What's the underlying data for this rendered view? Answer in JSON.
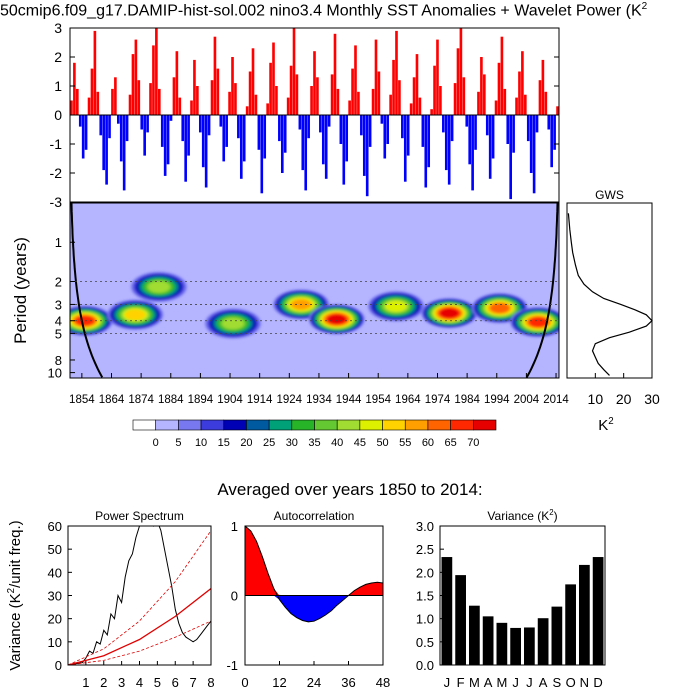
{
  "title": "50cmip6.f09_g17.DAMIP-hist-sol.002 nino3.4 Monthly SST Anomalies + Wavelet Power (K",
  "title_sup": "2",
  "subtitle": "Averaged over years 1850 to 2014:",
  "colors": {
    "positive": "#ff0000",
    "negative": "#0000ff",
    "background": "#ffffff"
  },
  "chart_data": [
    {
      "id": "anomaly-timeseries",
      "type": "bar",
      "x_start_year": 1850,
      "x_end_year": 2015,
      "ylim": [
        -3,
        3
      ],
      "yticks": [
        "-3",
        "-2",
        "-1",
        "0",
        "1",
        "2",
        "3"
      ],
      "note_values": "monthly SST anomaly bars, positive red / negative blue",
      "series": [
        {
          "name": "",
          "values": [
            0.5,
            1.8,
            0.9,
            -0.4,
            -1.5,
            -1.2,
            0.6,
            1.6,
            2.9,
            0.8,
            -0.7,
            -1.9,
            -2.4,
            -0.8,
            0.9,
            1.3,
            -0.3,
            -1.6,
            -2.6,
            -0.9,
            0.7,
            2.1,
            2.6,
            1.2,
            -0.5,
            -1.4,
            -0.6,
            1.1,
            2.4,
            3.0,
            0.9,
            -1.1,
            -2.1,
            -1.7,
            -0.2,
            1.3,
            2.2,
            0.6,
            -0.9,
            -2.3,
            -1.4,
            0.5,
            1.9,
            1.0,
            -0.6,
            -1.8,
            -2.5,
            -0.7,
            1.2,
            2.7,
            1.6,
            -0.4,
            -1.6,
            -1.1,
            0.8,
            2.0,
            1.1,
            -0.8,
            -2.2,
            -1.6,
            0.3,
            1.5,
            2.3,
            0.7,
            -1.2,
            -2.7,
            -1.5,
            0.4,
            1.8,
            2.5,
            1.0,
            -0.9,
            -2.0,
            -1.3,
            0.6,
            1.7,
            3.0,
            1.4,
            -0.5,
            -1.9,
            -2.6,
            -0.8,
            1.0,
            2.2,
            1.3,
            -0.6,
            -1.7,
            -2.2,
            -0.4,
            1.4,
            2.8,
            0.9,
            -1.0,
            -2.4,
            -1.6,
            0.5,
            1.6,
            2.4,
            0.8,
            -0.7,
            -2.1,
            -2.8,
            -1.1,
            0.9,
            2.6,
            1.5,
            -0.3,
            -1.5,
            -1.0,
            0.7,
            1.9,
            2.9,
            1.2,
            -0.8,
            -2.3,
            -1.4,
            0.4,
            1.3,
            2.1,
            0.6,
            -1.1,
            -2.5,
            -1.8,
            0.2,
            1.7,
            2.6,
            1.0,
            -0.6,
            -1.9,
            -2.4,
            -0.9,
            1.1,
            2.3,
            3.0,
            1.3,
            -0.4,
            -1.7,
            -2.6,
            -1.2,
            0.8,
            2.0,
            1.4,
            -0.7,
            -2.2,
            -1.5,
            0.5,
            1.8,
            2.7,
            0.9,
            -1.0,
            -2.9,
            -1.3,
            0.6,
            1.5,
            2.2,
            0.7,
            -0.9,
            -2.0,
            -2.7,
            -0.6,
            1.2,
            1.9,
            0.8,
            -0.5,
            -1.8,
            -1.2,
            0.3
          ]
        }
      ]
    },
    {
      "id": "wavelet-power",
      "type": "heatmap",
      "xlabel": "",
      "ylabel": "Period (years)",
      "xticks": [
        "1854",
        "1864",
        "1874",
        "1884",
        "1894",
        "1904",
        "1914",
        "1924",
        "1934",
        "1944",
        "1954",
        "1964",
        "1974",
        "1984",
        "1994",
        "2004",
        "2014"
      ],
      "yticks": [
        "1",
        "2",
        "3",
        "4",
        "5",
        "8",
        "10"
      ],
      "colorbar": {
        "labels": [
          "0",
          "5",
          "10",
          "15",
          "20",
          "25",
          "30",
          "35",
          "40",
          "45",
          "50",
          "55",
          "60",
          "65",
          "70"
        ],
        "colors": [
          "#ffffff",
          "#b4b4ff",
          "#7878f0",
          "#3c3cdc",
          "#0000b4",
          "#005aa0",
          "#00a078",
          "#28b428",
          "#64c832",
          "#a0dc32",
          "#dcf000",
          "#ffd200",
          "#ffa000",
          "#ff6400",
          "#ff2800",
          "#e60000"
        ]
      },
      "blobs": [
        {
          "year": 1855,
          "period": 4.0,
          "power": 65
        },
        {
          "year": 1872,
          "period": 3.6,
          "power": 52
        },
        {
          "year": 1880,
          "period": 2.2,
          "power": 40
        },
        {
          "year": 1905,
          "period": 4.2,
          "power": 38
        },
        {
          "year": 1928,
          "period": 3.0,
          "power": 55
        },
        {
          "year": 1940,
          "period": 3.9,
          "power": 72
        },
        {
          "year": 1960,
          "period": 3.1,
          "power": 45
        },
        {
          "year": 1978,
          "period": 3.5,
          "power": 68
        },
        {
          "year": 1995,
          "period": 3.2,
          "power": 58
        },
        {
          "year": 2008,
          "period": 4.1,
          "power": 66
        }
      ]
    },
    {
      "id": "global-wavelet-spectrum",
      "type": "line",
      "title": "GWS",
      "xlabel": "K",
      "xlabel_sup": "2",
      "xticks": [
        "10",
        "20",
        "30"
      ],
      "xlim": [
        0,
        30
      ],
      "ylim_periods": [
        0.5,
        11
      ],
      "series": [
        {
          "name": "",
          "x": [
            0.5,
            1,
            1.5,
            2,
            3,
            4,
            6,
            9,
            13,
            19,
            24,
            28,
            30,
            28,
            22,
            15,
            10,
            9,
            10,
            11,
            13,
            15
          ],
          "y": [
            0.6,
            0.8,
            1.0,
            1.2,
            1.5,
            1.8,
            2.1,
            2.4,
            2.7,
            3.0,
            3.3,
            3.6,
            4.0,
            4.4,
            4.9,
            5.4,
            6.0,
            6.8,
            7.6,
            8.5,
            9.5,
            10.5
          ]
        }
      ]
    },
    {
      "id": "power-spectrum",
      "type": "line",
      "title": "Power Spectrum",
      "ylabel": "Variance (K",
      "ylabel_sup": "2",
      "ylabel_tail": "/unit freq.)",
      "xticks": [
        "1",
        "2",
        "3",
        "4",
        "5",
        "6",
        "7",
        "8"
      ],
      "yticks": [
        "0",
        "10",
        "20",
        "30",
        "40",
        "50",
        "60"
      ],
      "xlim": [
        0,
        8
      ],
      "ylim": [
        0,
        60
      ],
      "series": [
        {
          "name": "",
          "x": [
            0,
            0.4,
            0.8,
            1.0,
            1.2,
            1.4,
            1.6,
            1.8,
            2.0,
            2.2,
            2.4,
            2.6,
            2.8,
            3.0,
            3.2,
            3.4,
            3.6,
            3.8,
            4.0,
            4.2,
            4.4,
            4.6,
            4.8,
            5.0,
            5.2,
            5.4,
            5.6,
            5.8,
            6.0,
            6.2,
            6.4,
            6.6,
            6.8,
            7.0,
            7.2,
            7.4,
            7.6,
            7.8,
            8.0
          ],
          "y": [
            0,
            0.5,
            1,
            3,
            6,
            5,
            10,
            9,
            15,
            13,
            22,
            20,
            30,
            27,
            38,
            45,
            48,
            55,
            60,
            62,
            68,
            65,
            60,
            62,
            58,
            50,
            42,
            34,
            24,
            18,
            14,
            12,
            11,
            10,
            11,
            13,
            15,
            17,
            19
          ]
        },
        {
          "name": "",
          "x": [
            0,
            2,
            4,
            6,
            8
          ],
          "y": [
            0,
            4,
            11,
            21,
            33
          ]
        },
        {
          "name": "",
          "x": [
            0,
            2,
            4,
            6,
            8
          ],
          "y": [
            0,
            7,
            19,
            36,
            58
          ]
        },
        {
          "name": "",
          "x": [
            0,
            2,
            4,
            6,
            8
          ],
          "y": [
            0,
            2,
            6,
            12,
            19
          ]
        }
      ]
    },
    {
      "id": "autocorrelation",
      "type": "area",
      "title": "Autocorrelation",
      "xticks": [
        "0",
        "12",
        "24",
        "36",
        "48"
      ],
      "yticks": [
        "-1",
        "0",
        "1"
      ],
      "xlim": [
        0,
        48
      ],
      "ylim": [
        -1,
        1
      ],
      "series": [
        {
          "name": "",
          "x": [
            0,
            2,
            4,
            6,
            8,
            10,
            12,
            14,
            16,
            18,
            20,
            22,
            24,
            26,
            28,
            30,
            32,
            34,
            36,
            38,
            40,
            42,
            44,
            46,
            48
          ],
          "y": [
            1.0,
            0.93,
            0.78,
            0.56,
            0.32,
            0.1,
            -0.06,
            -0.17,
            -0.26,
            -0.32,
            -0.36,
            -0.38,
            -0.37,
            -0.33,
            -0.28,
            -0.22,
            -0.14,
            -0.07,
            0.0,
            0.07,
            0.12,
            0.16,
            0.18,
            0.19,
            0.18
          ]
        }
      ]
    },
    {
      "id": "monthly-variance",
      "type": "bar",
      "title": "Variance (K",
      "title_sup": "2",
      "title_tail": ")",
      "categories": [
        "J",
        "F",
        "M",
        "A",
        "M",
        "J",
        "J",
        "A",
        "S",
        "O",
        "N",
        "D"
      ],
      "values": [
        2.33,
        1.94,
        1.28,
        1.05,
        0.91,
        0.8,
        0.81,
        1.01,
        1.26,
        1.74,
        2.16,
        2.33
      ],
      "yticks": [
        "0.0",
        "0.5",
        "1.0",
        "1.5",
        "2.0",
        "2.5",
        "3.0"
      ],
      "ylim": [
        0,
        3
      ]
    }
  ]
}
